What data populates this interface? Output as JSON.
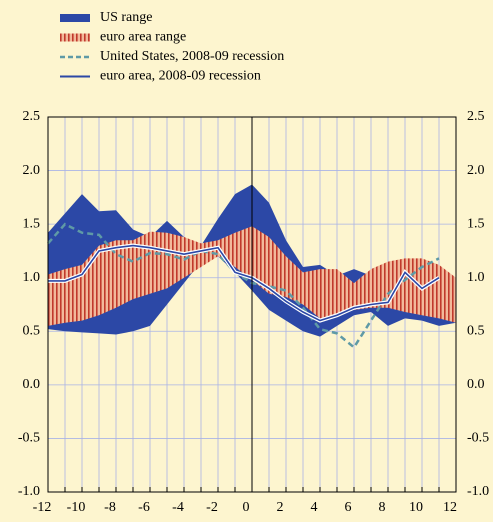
{
  "chart_data": {
    "type": "line",
    "x": [
      -12,
      -11,
      -10,
      -9,
      -8,
      -7,
      -6,
      -5,
      -4,
      -3,
      -2,
      -1,
      0,
      1,
      2,
      3,
      4,
      5,
      6,
      7,
      8,
      9,
      10,
      11,
      12
    ],
    "xlim": [
      -12,
      12
    ],
    "xticks": [
      -12,
      -10,
      -8,
      -6,
      -4,
      -2,
      0,
      2,
      4,
      6,
      8,
      10,
      12
    ],
    "xgrid": [
      -12,
      -11,
      -10,
      -9,
      -8,
      -7,
      -6,
      -5,
      -4,
      -3,
      -2,
      -1,
      0,
      1,
      2,
      3,
      4,
      5,
      6,
      7,
      8,
      9,
      10,
      11,
      12
    ],
    "ylim": [
      -1.0,
      2.5
    ],
    "yticks": [
      {
        "value": -1.0,
        "label": "-1.0"
      },
      {
        "value": -0.5,
        "label": "-0.5"
      },
      {
        "value": 0.0,
        "label": "0.0"
      },
      {
        "value": 0.5,
        "label": "0.5"
      },
      {
        "value": 1.0,
        "label": "1.0"
      },
      {
        "value": 1.5,
        "label": "1.5"
      },
      {
        "value": 2.0,
        "label": "2.0"
      },
      {
        "value": 2.5,
        "label": "2.5"
      }
    ],
    "grid": true,
    "series": [
      {
        "name": "US range",
        "style": "band",
        "color": "#2c48a6",
        "high": [
          1.42,
          1.6,
          1.78,
          1.62,
          1.63,
          1.45,
          1.38,
          1.53,
          1.38,
          1.3,
          1.55,
          1.78,
          1.87,
          1.7,
          1.35,
          1.1,
          1.12,
          1.02,
          1.08,
          1.02,
          1.1,
          1.12,
          1.1,
          0.95,
          0.7
        ],
        "low": [
          0.52,
          0.5,
          0.49,
          0.48,
          0.47,
          0.5,
          0.55,
          0.75,
          0.95,
          1.15,
          1.2,
          1.05,
          0.88,
          0.7,
          0.6,
          0.5,
          0.45,
          0.55,
          0.65,
          0.68,
          0.55,
          0.62,
          0.6,
          0.55,
          0.58
        ]
      },
      {
        "name": "euro area range",
        "style": "band",
        "color": "#f2b99a",
        "hatch_color": "#c0392b",
        "high": [
          1.03,
          1.08,
          1.12,
          1.3,
          1.35,
          1.35,
          1.43,
          1.42,
          1.38,
          1.32,
          1.35,
          1.42,
          1.48,
          1.38,
          1.2,
          1.05,
          1.08,
          1.08,
          0.95,
          1.08,
          1.15,
          1.18,
          1.18,
          1.12,
          1.0
        ],
        "low": [
          0.55,
          0.58,
          0.6,
          0.65,
          0.72,
          0.8,
          0.85,
          0.9,
          1.0,
          1.1,
          1.2,
          1.1,
          0.98,
          0.85,
          0.82,
          0.75,
          0.62,
          0.65,
          0.7,
          0.72,
          0.72,
          0.68,
          0.65,
          0.62,
          0.58
        ]
      },
      {
        "name": "United States, 2008-09 recession",
        "style": "dashed",
        "color": "#5f9aa6",
        "values": [
          1.32,
          1.5,
          1.42,
          1.4,
          1.22,
          1.15,
          1.23,
          1.22,
          1.17,
          1.25,
          1.22,
          1.05,
          0.95,
          0.92,
          0.88,
          0.72,
          0.52,
          0.48,
          0.35,
          0.6,
          0.85,
          0.98,
          1.1,
          1.18,
          null
        ]
      },
      {
        "name": "euro area, 2008-09 recession",
        "style": "solid",
        "color": "#2c48a6",
        "values": [
          0.97,
          0.97,
          1.03,
          1.25,
          1.28,
          1.3,
          1.28,
          1.25,
          1.22,
          1.25,
          1.28,
          1.05,
          1.0,
          0.9,
          0.78,
          0.68,
          0.6,
          0.65,
          0.72,
          0.75,
          0.77,
          1.05,
          0.9,
          1.0,
          null
        ]
      }
    ]
  }
}
